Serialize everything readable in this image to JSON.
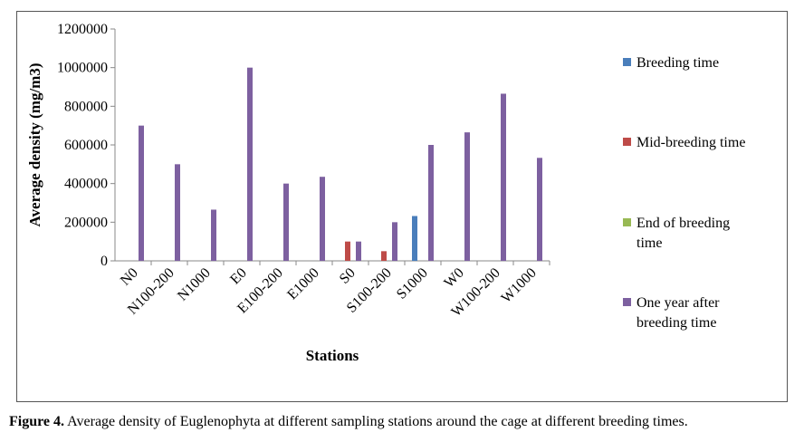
{
  "chart_data": {
    "type": "bar",
    "title": "",
    "xlabel": "Stations",
    "ylabel": "Average density (mg/m3)",
    "ylim": [
      0,
      1200000
    ],
    "yticks": [
      "0",
      "200000",
      "400000",
      "600000",
      "800000",
      "1000000",
      "1200000"
    ],
    "categories": [
      "N0",
      "N100-200",
      "N1000",
      "E0",
      "E100-200",
      "E1000",
      "S0",
      "S100-200",
      "S1000",
      "W0",
      "W100-200",
      "W1000"
    ],
    "series": [
      {
        "name": "Breeding time",
        "color": "#4a7ebb",
        "values": [
          0,
          0,
          0,
          0,
          0,
          0,
          0,
          0,
          232000,
          0,
          0,
          0
        ]
      },
      {
        "name": "Mid-breeding time",
        "color": "#be4b48",
        "values": [
          0,
          0,
          0,
          0,
          0,
          0,
          100000,
          50000,
          0,
          0,
          0,
          0
        ]
      },
      {
        "name": "End of breeding time",
        "color": "#98b954",
        "values": [
          0,
          0,
          0,
          0,
          0,
          0,
          0,
          0,
          0,
          0,
          0,
          0
        ]
      },
      {
        "name": "One year after breeding time",
        "color": "#7d60a0",
        "values": [
          700000,
          500000,
          265000,
          1000000,
          400000,
          435000,
          100000,
          200000,
          600000,
          665000,
          865000,
          533000
        ]
      }
    ],
    "legend": "right",
    "grid": false
  },
  "legend_labels": [
    [
      "Breeding time"
    ],
    [
      "Mid-breeding time"
    ],
    [
      "End of breeding",
      "time"
    ],
    [
      "One year after",
      "breeding time"
    ]
  ],
  "caption": {
    "label": "Figure 4.",
    "text": " Average density of Euglenophyta at different sampling stations around the cage at different breeding times."
  }
}
